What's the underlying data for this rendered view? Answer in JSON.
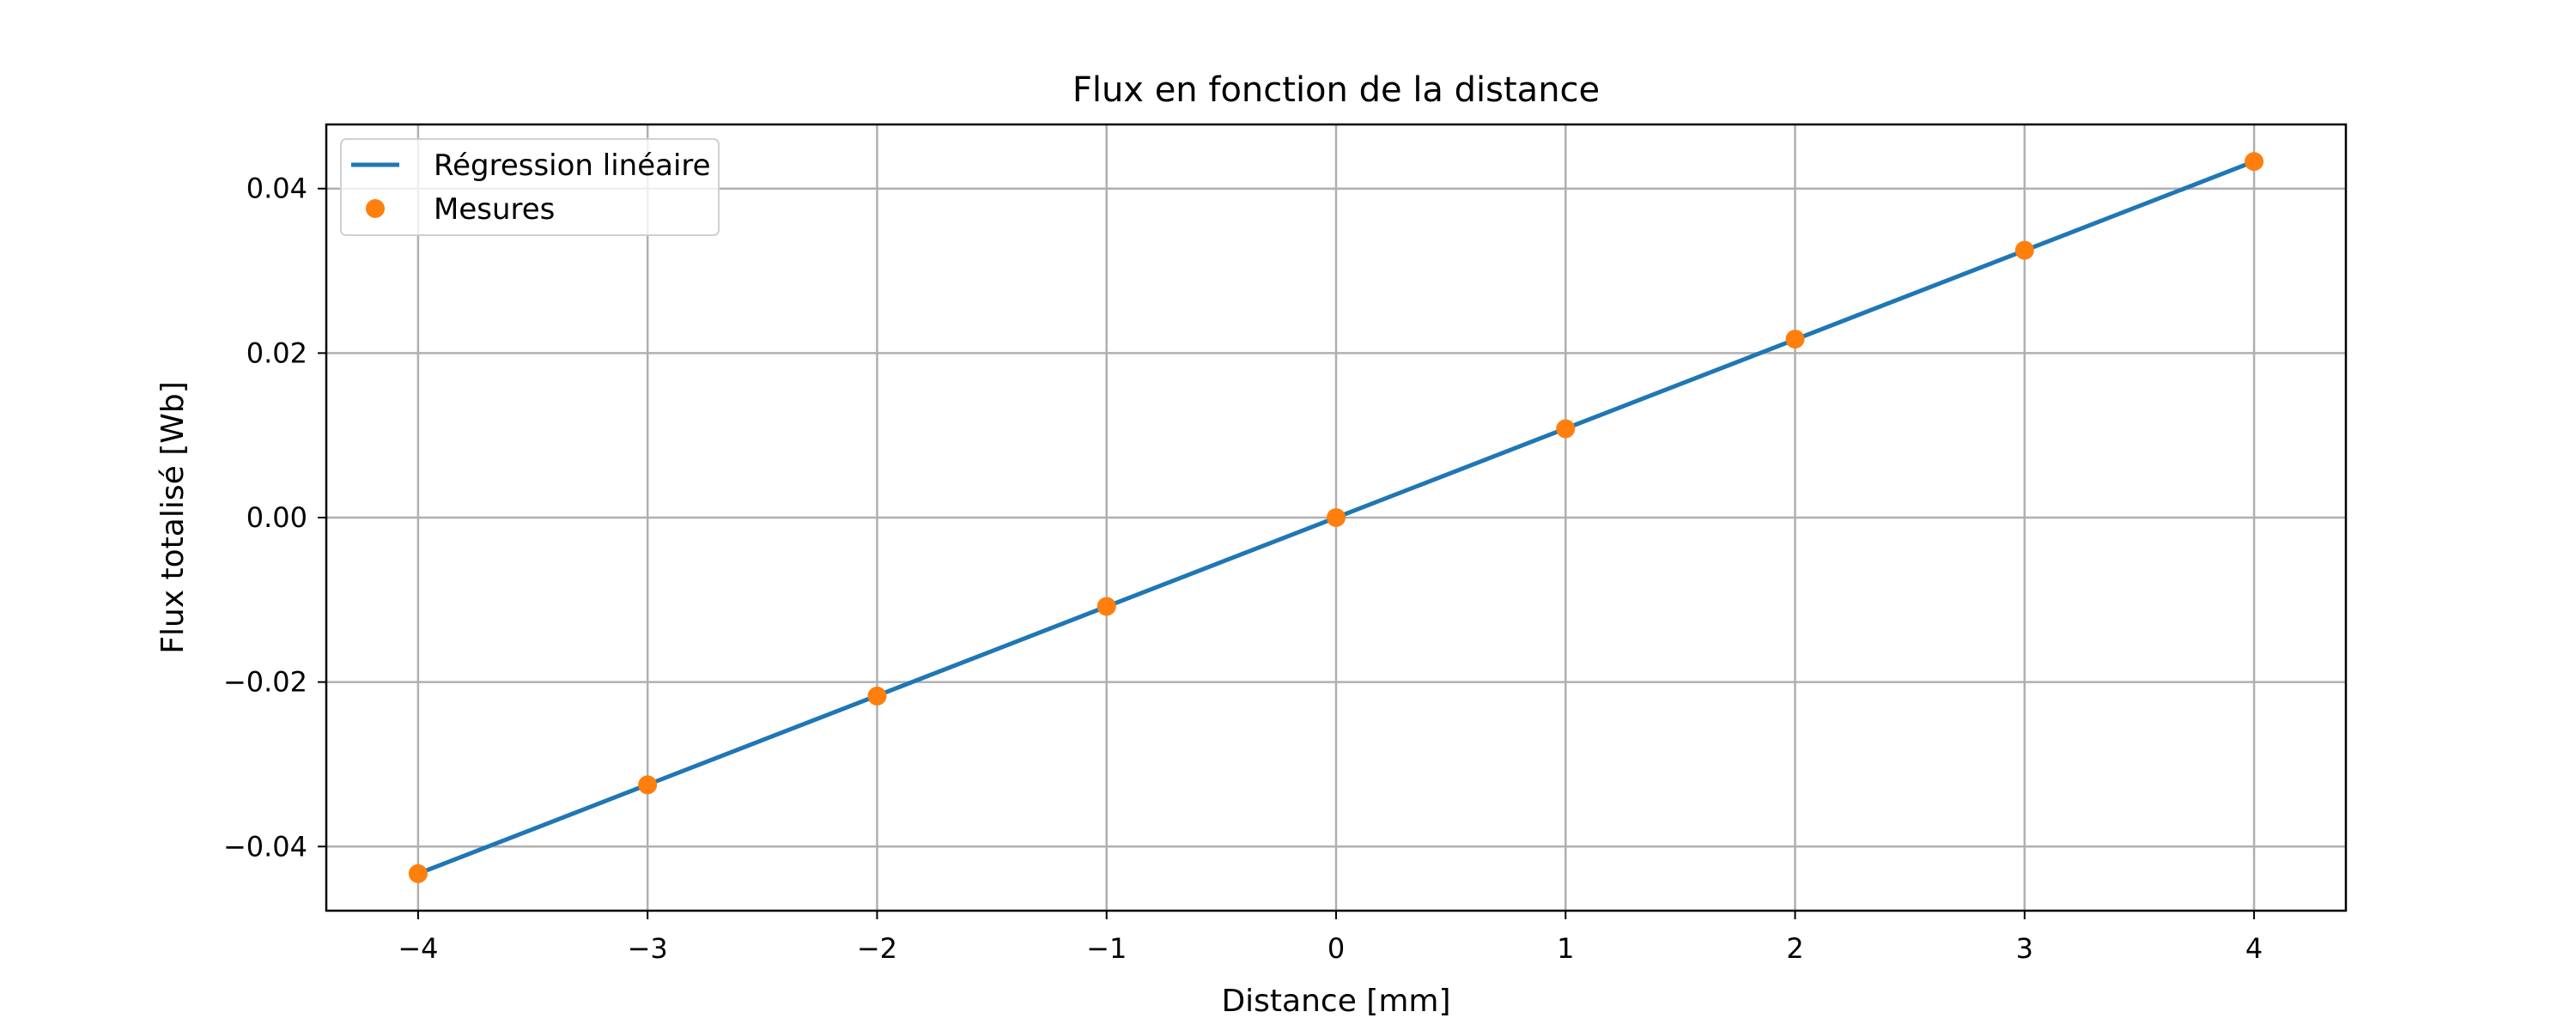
{
  "chart_data": {
    "type": "line",
    "title": "Flux en fonction de la distance",
    "xlabel": "Distance [mm]",
    "ylabel": "Flux totalisé [Wb]",
    "xlim": [
      -4.4,
      4.4
    ],
    "ylim": [
      -0.0478,
      0.0478
    ],
    "xticks": [
      -4,
      -3,
      -2,
      -1,
      0,
      1,
      2,
      3,
      4
    ],
    "xtick_labels": [
      "−4",
      "−3",
      "−2",
      "−1",
      "0",
      "1",
      "2",
      "3",
      "4"
    ],
    "yticks": [
      -0.04,
      -0.02,
      0.0,
      0.02,
      0.04
    ],
    "ytick_labels": [
      "−0.04",
      "−0.02",
      "0.00",
      "0.02",
      "0.04"
    ],
    "grid": true,
    "legend_position": "top-left",
    "series": [
      {
        "name": "Régression linéaire",
        "kind": "line",
        "color": "#1f77b4",
        "x": [
          -4,
          4
        ],
        "y": [
          -0.0433,
          0.0433
        ]
      },
      {
        "name": "Mesures",
        "kind": "scatter",
        "color": "#ff7f0e",
        "x": [
          -4,
          -3,
          -2,
          -1,
          0,
          1,
          2,
          3,
          4
        ],
        "y": [
          -0.0433,
          -0.0325,
          -0.0217,
          -0.0108,
          0.0,
          0.0108,
          0.0217,
          0.0325,
          0.0433
        ]
      }
    ]
  }
}
